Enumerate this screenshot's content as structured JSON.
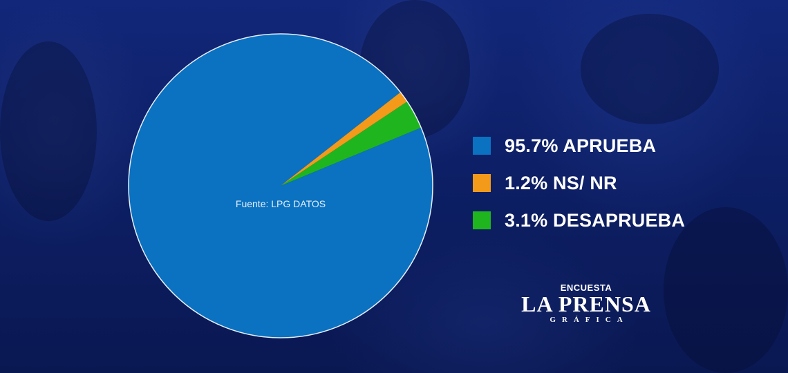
{
  "chart_data": {
    "type": "pie",
    "title": "",
    "source": "Fuente: LPG DATOS",
    "slices": [
      {
        "label": "APRUEBA",
        "value": 95.7,
        "display": "95.7% APRUEBA",
        "color": "#0a72c0"
      },
      {
        "label": "NS/ NR",
        "value": 1.2,
        "display": "1.2% NS/ NR",
        "color": "#f39a1b"
      },
      {
        "label": "DESAPRUEBA",
        "value": 3.1,
        "display": "3.1% DESAPRUEBA",
        "color": "#1fb51f"
      }
    ],
    "legend_position": "right"
  },
  "legend": {
    "items": [
      {
        "text": "95.7% APRUEBA",
        "color": "#0a72c0"
      },
      {
        "text": "1.2% NS/ NR",
        "color": "#f39a1b"
      },
      {
        "text": "3.1% DESAPRUEBA",
        "color": "#1fb51f"
      }
    ]
  },
  "logo": {
    "top": "ENCUESTA",
    "main": "LA PRENSA",
    "sub": "GRÁFICA"
  }
}
